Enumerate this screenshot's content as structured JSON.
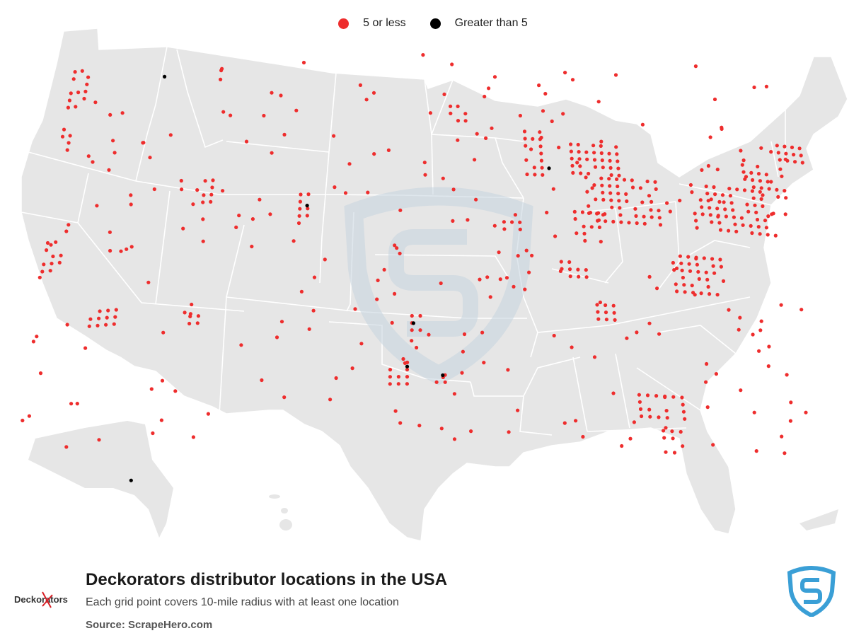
{
  "legend": {
    "small_label": "5 or less",
    "small_color": "#ee2d2d",
    "large_label": "Greater than 5",
    "large_color": "#000000"
  },
  "title": "Deckorators distributor locations in the USA",
  "subtitle": "Each grid point covers 10-mile radius with at least one location",
  "source": "Source: ScrapeHero.com",
  "logo_text": "Deckorators",
  "colors": {
    "land": "#e6e6e6",
    "border": "#ffffff",
    "dot": "#ee2d2d",
    "dot_large": "#000000",
    "watermark": "#cdd8e1"
  },
  "icons": {
    "legend_small": "red-dot-icon",
    "legend_large": "black-dot-icon",
    "brand": "scrapehero-shield-icon"
  },
  "chart_data": {
    "type": "scatter",
    "categories": [
      "5 or less",
      "Greater than 5"
    ],
    "large_point_lonlat": [
      [
        -116.2,
        47.7
      ],
      [
        -87.6,
        41.9
      ],
      [
        -104.8,
        39.7
      ],
      [
        -97.3,
        32.8
      ],
      [
        -95.4,
        29.8
      ],
      [
        -97.7,
        30.3
      ],
      [
        -149.9,
        61.2
      ]
    ],
    "clusters": [
      {
        "lon": [
          -123.2,
          -122.0
        ],
        "lat": [
          46.5,
          48.9
        ]
      },
      {
        "lon": [
          -123.2,
          -122.4
        ],
        "lat": [
          44.0,
          45.8
        ]
      },
      {
        "lon": [
          -122.8,
          -121.4
        ],
        "lat": [
          37.0,
          38.9
        ]
      },
      {
        "lon": [
          -118.9,
          -116.8
        ],
        "lat": [
          33.5,
          34.5
        ]
      },
      {
        "lon": [
          -112.2,
          -111.6
        ],
        "lat": [
          40.2,
          41.6
        ]
      },
      {
        "lon": [
          -105.3,
          -104.6
        ],
        "lat": [
          38.7,
          40.6
        ]
      },
      {
        "lon": [
          -112.2,
          -111.6
        ],
        "lat": [
          33.2,
          33.7
        ]
      },
      {
        "lon": [
          -97.4,
          -96.4
        ],
        "lat": [
          32.4,
          33.4
        ]
      },
      {
        "lon": [
          -95.8,
          -94.9
        ],
        "lat": [
          29.4,
          30.2
        ]
      },
      {
        "lon": [
          -98.8,
          -97.5
        ],
        "lat": [
          29.3,
          30.6
        ]
      },
      {
        "lon": [
          -94.6,
          -93.0
        ],
        "lat": [
          44.5,
          45.6
        ]
      },
      {
        "lon": [
          -89.2,
          -87.6
        ],
        "lat": [
          41.5,
          44.0
        ]
      },
      {
        "lon": [
          -91.0,
          -89.8
        ],
        "lat": [
          38.3,
          39.0
        ]
      },
      {
        "lon": [
          -85.9,
          -82.6
        ],
        "lat": [
          41.7,
          43.6
        ]
      },
      {
        "lon": [
          -85.0,
          -80.0
        ],
        "lat": [
          39.0,
          41.5
        ]
      },
      {
        "lon": [
          -80.5,
          -79.4
        ],
        "lat": [
          40.3,
          40.9
        ]
      },
      {
        "lon": [
          -77.5,
          -71.5
        ],
        "lat": [
          39.0,
          41.7
        ]
      },
      {
        "lon": [
          -73.5,
          -70.5
        ],
        "lat": [
          41.3,
          43.2
        ]
      },
      {
        "lon": [
          -71.2,
          -69.0
        ],
        "lat": [
          43.5,
          44.6
        ]
      },
      {
        "lon": [
          -79.5,
          -76.0
        ],
        "lat": [
          35.2,
          37.5
        ]
      },
      {
        "lon": [
          -85.0,
          -83.2
        ],
        "lat": [
          33.3,
          34.4
        ]
      },
      {
        "lon": [
          -82.8,
          -80.0
        ],
        "lat": [
          27.8,
          29.2
        ]
      },
      {
        "lon": [
          -81.5,
          -80.2
        ],
        "lat": [
          25.8,
          27.3
        ]
      },
      {
        "lon": [
          -87.2,
          -85.5
        ],
        "lat": [
          35.7,
          36.6
        ]
      },
      {
        "lon": [
          -86.0,
          -84.3
        ],
        "lat": [
          37.8,
          39.6
        ]
      }
    ]
  }
}
